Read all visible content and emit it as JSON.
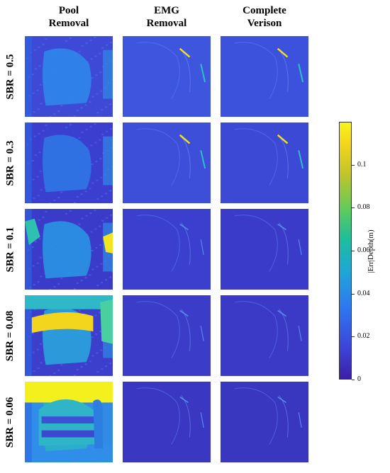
{
  "columns": [
    {
      "key": "pool",
      "label": "Pool\nRemoval"
    },
    {
      "key": "emg",
      "label": "EMG\nRemoval"
    },
    {
      "key": "complete",
      "label": "Complete\nVerison"
    }
  ],
  "rows": [
    {
      "label": "SBR = 0.5"
    },
    {
      "label": "SBR = 0.3"
    },
    {
      "label": "SBR = 0.1"
    },
    {
      "label": "SBR = 0.08"
    },
    {
      "label": "SBR = 0.06"
    }
  ],
  "colorbar": {
    "label": "|Err|Depth(m)",
    "min": 0,
    "max": 0.12,
    "ticks": [
      "0",
      "0.02",
      "0.04",
      "0.06",
      "0.08",
      "0.1"
    ],
    "tick_values": [
      0,
      0.02,
      0.04,
      0.06,
      0.08,
      0.1
    ]
  },
  "colors": {
    "low": "#3b1fa6",
    "mid": "#1fbe9a",
    "high": "#f9f51d"
  }
}
